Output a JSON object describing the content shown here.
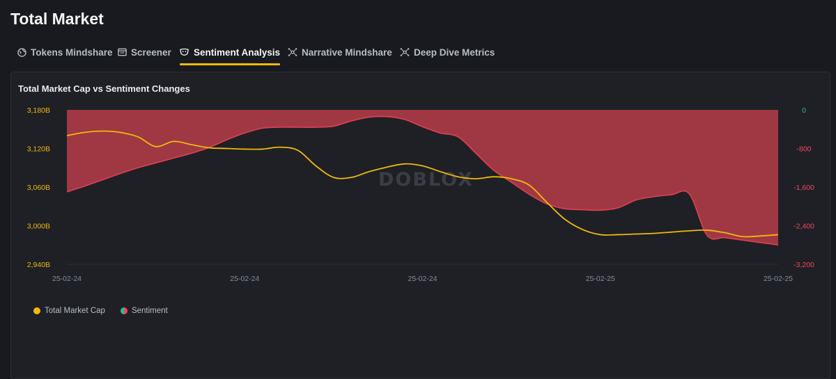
{
  "page": {
    "title": "Total Market"
  },
  "tabs": [
    {
      "label": "Tokens Mindshare",
      "icon": "globe-icon",
      "active": false
    },
    {
      "label": "Screener",
      "icon": "screener-icon",
      "active": false
    },
    {
      "label": "Sentiment Analysis",
      "icon": "mask-icon",
      "active": true
    },
    {
      "label": "Narrative Mindshare",
      "icon": "network-icon",
      "active": false
    },
    {
      "label": "Deep Dive Metrics",
      "icon": "network-icon",
      "active": false
    }
  ],
  "watermark": "DOBLOX",
  "colors": {
    "market_cap_line": "#f0b90b",
    "sentiment_fill": "#a83a46",
    "sentiment_line": "#e0404f",
    "left_axis_labels": "#f0b90b",
    "right_axis_positive": "#2ebd85",
    "right_axis_negative": "#f6465d"
  },
  "chart_data": {
    "type": "line",
    "title": "Total Market Cap vs Sentiment Changes",
    "x_tick_labels": [
      "25-02-24",
      "25-02-24",
      "25-02-24",
      "25-02-25",
      "25-02-25"
    ],
    "left_axis": {
      "ticks": [
        "3,180B",
        "3,120B",
        "3,060B",
        "3,000B",
        "2,940B"
      ],
      "range": [
        2940,
        3180
      ]
    },
    "right_axis": {
      "ticks": [
        "0",
        "-800",
        "-1,600",
        "-2,400",
        "-3,200"
      ],
      "range": [
        -3200,
        0
      ]
    },
    "grid": false,
    "legend_position": "bottom-left",
    "series": [
      {
        "name": "Total Market Cap",
        "axis": "left",
        "type": "line",
        "values": [
          3140,
          3145,
          3147,
          3145,
          3138,
          3123,
          3131,
          3126,
          3121,
          3120,
          3119,
          3119,
          3122,
          3117,
          3093,
          3075,
          3075,
          3084,
          3091,
          3096,
          3093,
          3084,
          3076,
          3073,
          3076,
          3073,
          3063,
          3036,
          3010,
          2994,
          2986,
          2986,
          2987,
          2988,
          2990,
          2992,
          2993,
          2989,
          2983,
          2984,
          2986
        ]
      },
      {
        "name": "Sentiment",
        "axis": "right",
        "type": "area",
        "values": [
          -1700,
          -1580,
          -1450,
          -1320,
          -1200,
          -1100,
          -1000,
          -900,
          -780,
          -620,
          -480,
          -380,
          -360,
          -360,
          -360,
          -340,
          -230,
          -150,
          -140,
          -200,
          -350,
          -480,
          -560,
          -900,
          -1250,
          -1500,
          -1750,
          -1950,
          -2050,
          -2070,
          -2080,
          -2030,
          -1870,
          -1800,
          -1760,
          -1740,
          -2600,
          -2650,
          -2700,
          -2750,
          -2800
        ]
      }
    ]
  }
}
